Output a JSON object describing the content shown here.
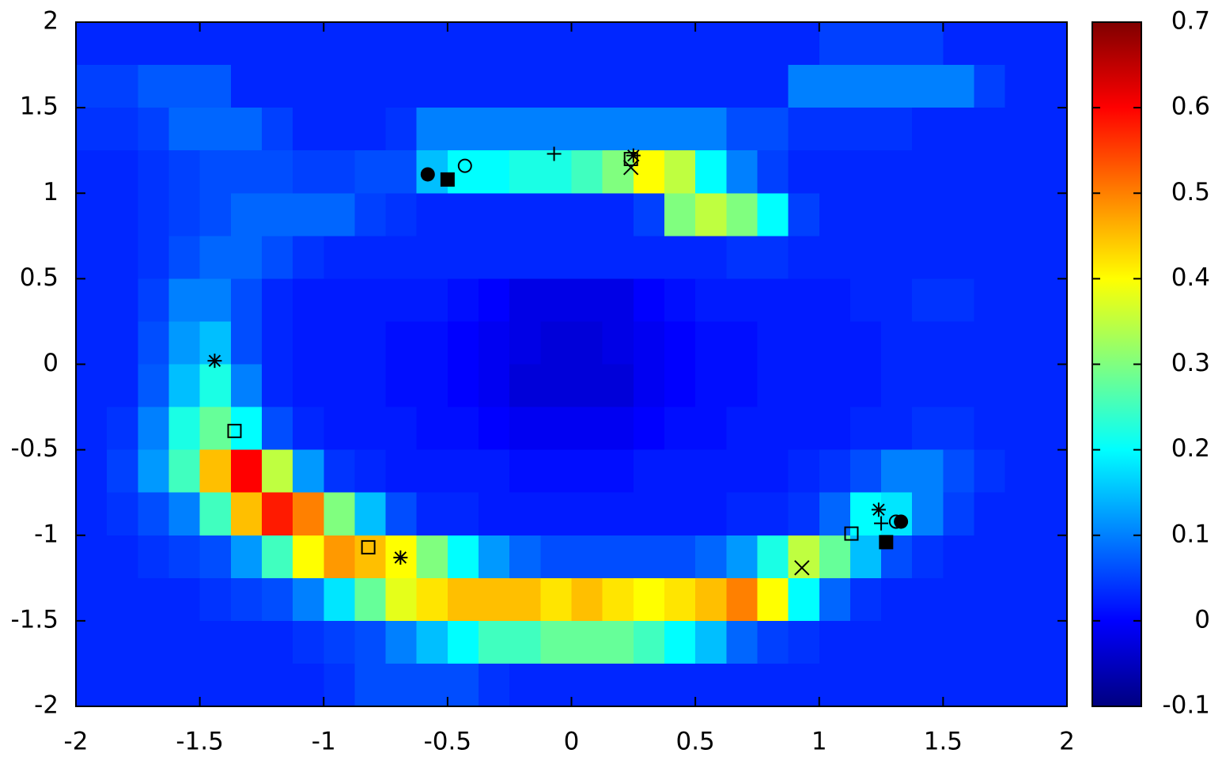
{
  "chart_data": {
    "type": "heatmap",
    "colormap": "jet",
    "xlim": [
      -2,
      2
    ],
    "ylim": [
      -2,
      2
    ],
    "zlim": [
      -0.1,
      0.7
    ],
    "xticks": [
      -2,
      -1.5,
      -1,
      -0.5,
      0,
      0.5,
      1,
      1.5,
      2
    ],
    "yticks": [
      -2,
      -1.5,
      -1,
      -0.5,
      0,
      0.5,
      1,
      1.5,
      2
    ],
    "zticks": [
      -0.1,
      0,
      0.1,
      0.2,
      0.3,
      0.4,
      0.5,
      0.6,
      0.7
    ],
    "z": [
      [
        0.03,
        0.03,
        0.03,
        0.03,
        0.03,
        0.03,
        0.03,
        0.03,
        0.03,
        0.03,
        0.03,
        0.03,
        0.03,
        0.03,
        0.03,
        0.03,
        0.03,
        0.03,
        0.03,
        0.03,
        0.03,
        0.03,
        0.03,
        0.03,
        0.05,
        0.05,
        0.05,
        0.05,
        0.03,
        0.03,
        0.03,
        0.03
      ],
      [
        0.05,
        0.05,
        0.07,
        0.07,
        0.07,
        0.03,
        0.03,
        0.03,
        0.03,
        0.03,
        0.03,
        0.03,
        0.03,
        0.03,
        0.03,
        0.03,
        0.03,
        0.03,
        0.03,
        0.03,
        0.03,
        0.03,
        0.03,
        0.1,
        0.1,
        0.1,
        0.1,
        0.1,
        0.1,
        0.05,
        0.03,
        0.03
      ],
      [
        0.04,
        0.04,
        0.05,
        0.08,
        0.08,
        0.08,
        0.05,
        0.03,
        0.03,
        0.03,
        0.04,
        0.1,
        0.1,
        0.1,
        0.1,
        0.1,
        0.1,
        0.1,
        0.1,
        0.1,
        0.1,
        0.06,
        0.06,
        0.04,
        0.04,
        0.04,
        0.04,
        0.03,
        0.03,
        0.03,
        0.03,
        0.03
      ],
      [
        0.03,
        0.03,
        0.04,
        0.05,
        0.06,
        0.06,
        0.06,
        0.05,
        0.05,
        0.06,
        0.06,
        0.15,
        0.2,
        0.2,
        0.22,
        0.22,
        0.25,
        0.3,
        0.4,
        0.35,
        0.2,
        0.1,
        0.05,
        0.03,
        0.03,
        0.03,
        0.03,
        0.03,
        0.03,
        0.03,
        0.03,
        0.03
      ],
      [
        0.03,
        0.03,
        0.04,
        0.05,
        0.06,
        0.08,
        0.08,
        0.08,
        0.08,
        0.05,
        0.04,
        0.03,
        0.03,
        0.03,
        0.03,
        0.03,
        0.03,
        0.03,
        0.05,
        0.3,
        0.35,
        0.3,
        0.2,
        0.05,
        0.03,
        0.03,
        0.03,
        0.03,
        0.03,
        0.03,
        0.03,
        0.03
      ],
      [
        0.03,
        0.03,
        0.04,
        0.06,
        0.08,
        0.08,
        0.06,
        0.04,
        0.03,
        0.03,
        0.03,
        0.03,
        0.03,
        0.03,
        0.03,
        0.03,
        0.03,
        0.03,
        0.03,
        0.03,
        0.03,
        0.04,
        0.04,
        0.03,
        0.03,
        0.03,
        0.03,
        0.03,
        0.03,
        0.03,
        0.03,
        0.03
      ],
      [
        0.03,
        0.03,
        0.05,
        0.1,
        0.1,
        0.06,
        0.03,
        0.02,
        0.02,
        0.02,
        0.02,
        0.02,
        0.01,
        0,
        -0.02,
        -0.02,
        -0.02,
        -0.02,
        0,
        0.01,
        0.02,
        0.02,
        0.02,
        0.02,
        0.02,
        0.03,
        0.03,
        0.04,
        0.04,
        0.03,
        0.03,
        0.03
      ],
      [
        0.03,
        0.03,
        0.06,
        0.12,
        0.15,
        0.06,
        0.03,
        0.02,
        0.02,
        0.02,
        0.01,
        0.01,
        0,
        -0.01,
        -0.02,
        -0.03,
        -0.03,
        -0.02,
        -0.01,
        0,
        0.01,
        0.01,
        0.02,
        0.02,
        0.02,
        0.02,
        0.03,
        0.03,
        0.03,
        0.03,
        0.03,
        0.03
      ],
      [
        0.03,
        0.03,
        0.07,
        0.15,
        0.22,
        0.1,
        0.03,
        0.02,
        0.02,
        0.02,
        0.01,
        0.01,
        0,
        -0.01,
        -0.03,
        -0.03,
        -0.03,
        -0.03,
        -0.01,
        0,
        0.01,
        0.01,
        0.02,
        0.02,
        0.02,
        0.02,
        0.03,
        0.03,
        0.03,
        0.03,
        0.03,
        0.03
      ],
      [
        0.03,
        0.04,
        0.1,
        0.22,
        0.28,
        0.2,
        0.06,
        0.03,
        0.02,
        0.02,
        0.02,
        0.01,
        0.01,
        0,
        -0.01,
        -0.01,
        -0.01,
        -0.01,
        0,
        0.01,
        0.01,
        0.02,
        0.02,
        0.02,
        0.02,
        0.03,
        0.03,
        0.04,
        0.04,
        0.03,
        0.03,
        0.03
      ],
      [
        0.03,
        0.05,
        0.12,
        0.25,
        0.45,
        0.6,
        0.35,
        0.12,
        0.04,
        0.03,
        0.02,
        0.02,
        0.02,
        0.02,
        0.01,
        0.01,
        0.01,
        0.01,
        0.02,
        0.02,
        0.02,
        0.02,
        0.02,
        0.03,
        0.04,
        0.06,
        0.1,
        0.1,
        0.06,
        0.04,
        0.03,
        0.03
      ],
      [
        0.03,
        0.04,
        0.06,
        0.1,
        0.25,
        0.45,
        0.58,
        0.5,
        0.3,
        0.15,
        0.06,
        0.03,
        0.03,
        0.02,
        0.02,
        0.02,
        0.02,
        0.02,
        0.02,
        0.02,
        0.02,
        0.03,
        0.03,
        0.04,
        0.08,
        0.2,
        0.18,
        0.1,
        0.05,
        0.03,
        0.03,
        0.03
      ],
      [
        0.03,
        0.03,
        0.04,
        0.05,
        0.06,
        0.12,
        0.25,
        0.4,
        0.48,
        0.45,
        0.4,
        0.3,
        0.2,
        0.12,
        0.08,
        0.06,
        0.06,
        0.06,
        0.06,
        0.06,
        0.08,
        0.12,
        0.22,
        0.35,
        0.28,
        0.15,
        0.06,
        0.04,
        0.03,
        0.03,
        0.03,
        0.03
      ],
      [
        0.03,
        0.03,
        0.03,
        0.03,
        0.04,
        0.05,
        0.06,
        0.1,
        0.18,
        0.28,
        0.38,
        0.42,
        0.45,
        0.45,
        0.45,
        0.42,
        0.45,
        0.42,
        0.4,
        0.42,
        0.45,
        0.5,
        0.4,
        0.2,
        0.08,
        0.04,
        0.03,
        0.03,
        0.03,
        0.03,
        0.03,
        0.03
      ],
      [
        0.03,
        0.03,
        0.03,
        0.03,
        0.03,
        0.03,
        0.03,
        0.04,
        0.05,
        0.06,
        0.1,
        0.15,
        0.2,
        0.25,
        0.25,
        0.28,
        0.28,
        0.28,
        0.25,
        0.2,
        0.15,
        0.08,
        0.05,
        0.04,
        0.03,
        0.03,
        0.03,
        0.03,
        0.03,
        0.03,
        0.03,
        0.03
      ],
      [
        0.03,
        0.03,
        0.03,
        0.03,
        0.03,
        0.03,
        0.03,
        0.03,
        0.04,
        0.06,
        0.06,
        0.06,
        0.06,
        0.04,
        0.03,
        0.03,
        0.03,
        0.03,
        0.03,
        0.03,
        0.03,
        0.03,
        0.03,
        0.03,
        0.03,
        0.03,
        0.03,
        0.03,
        0.03,
        0.03,
        0.03,
        0.03
      ]
    ],
    "series": [
      {
        "marker": "filled-circle",
        "color": "#000000",
        "x": [
          -0.58,
          1.33
        ],
        "y": [
          1.11,
          -0.92
        ]
      },
      {
        "marker": "open-circle",
        "color": "#000000",
        "x": [
          -0.43,
          1.31
        ],
        "y": [
          1.16,
          -0.92
        ]
      },
      {
        "marker": "filled-square",
        "color": "#000000",
        "x": [
          -0.5,
          1.27
        ],
        "y": [
          1.08,
          -1.04
        ]
      },
      {
        "marker": "plus",
        "color": "#000000",
        "x": [
          -0.07,
          1.25
        ],
        "y": [
          1.23,
          -0.93
        ]
      },
      {
        "marker": "open-square",
        "color": "#000000",
        "x": [
          0.24,
          -1.36,
          -0.82,
          1.13
        ],
        "y": [
          1.2,
          -0.39,
          -1.07,
          -0.99
        ]
      },
      {
        "marker": "cross",
        "color": "#000000",
        "x": [
          0.24,
          0.93
        ],
        "y": [
          1.15,
          -1.19
        ]
      },
      {
        "marker": "asterisk",
        "color": "#000000",
        "x": [
          0.25,
          -1.44,
          -0.69,
          1.24
        ],
        "y": [
          1.22,
          0.02,
          -1.13,
          -0.85
        ]
      }
    ]
  }
}
